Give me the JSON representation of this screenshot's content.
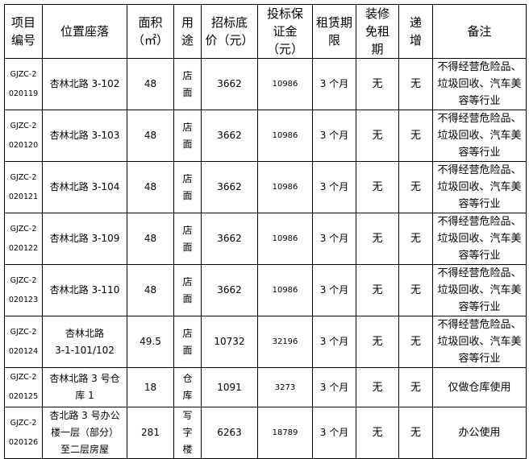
{
  "headers": [
    "项目\n编号",
    "位置座落",
    "面积\n（㎡）",
    "用\n途",
    "招标底\n价（元）",
    "投标保\n证金\n（元）",
    "租赁期\n限",
    "装修\n免租\n期",
    "递\n增",
    "备注"
  ],
  "rows": [
    {
      "code": "GJZC-2\n020119",
      "location": "杏林北路 3-102",
      "area": "48",
      "use": "店\n面",
      "base_price": "3662",
      "deposit": "10986",
      "term": "3 个月",
      "free_period": "无",
      "increase": "无",
      "note": "不得经营危险品、\n垃圾回收、汽车美\n容等行业"
    },
    {
      "code": "GJZC-2\n020120",
      "location": "杏林北路 3-103",
      "area": "48",
      "use": "店\n面",
      "base_price": "3662",
      "deposit": "10986",
      "term": "3 个月",
      "free_period": "无",
      "increase": "无",
      "note": "不得经营危险品、\n垃圾回收、汽车美\n容等行业"
    },
    {
      "code": "GJZC-2\n020121",
      "location": "杏林北路 3-104",
      "area": "48",
      "use": "店\n面",
      "base_price": "3662",
      "deposit": "10986",
      "term": "3 个月",
      "free_period": "无",
      "increase": "无",
      "note": "不得经营危险品、\n垃圾回收、汽车美\n容等行业"
    },
    {
      "code": "GJZC-2\n020122",
      "location": "杏林北路 3-109",
      "area": "48",
      "use": "店\n面",
      "base_price": "3662",
      "deposit": "10986",
      "term": "3 个月",
      "free_period": "无",
      "increase": "无",
      "note": "不得经营危险品、\n垃圾回收、汽车美\n容等行业"
    },
    {
      "code": "GJZC-2\n020123",
      "location": "杏林北路 3-110",
      "area": "48",
      "use": "店\n面",
      "base_price": "3662",
      "deposit": "10986",
      "term": "3 个月",
      "free_period": "无",
      "increase": "无",
      "note": "不得经营危险品、\n垃圾回收、汽车美\n容等行业"
    },
    {
      "code": "GJZC-2\n020124",
      "location": "杏林北路\n3-1-101/102",
      "area": "49.5",
      "use": "店\n面",
      "base_price": "10732",
      "deposit": "32196",
      "term": "3 个月",
      "free_period": "无",
      "increase": "无",
      "note": "不得经营危险品、\n垃圾回收、汽车美\n容等行业"
    },
    {
      "code": "GJZC-2\n020125",
      "location": "杏林北路 3 号仓\n库 1",
      "area": "18",
      "use": "仓\n库",
      "base_price": "1091",
      "deposit": "3273",
      "term": "3 个月",
      "free_period": "无",
      "increase": "无",
      "note": "仅做仓库使用"
    },
    {
      "code": "GJZC-2\n020126",
      "location": "杏北路 3 号办公\n楼一层（部分）\n至二层房屋",
      "area": "281",
      "use": "写\n字\n楼",
      "base_price": "6263",
      "deposit": "18789",
      "term": "3 个月",
      "free_period": "无",
      "increase": "无",
      "note": "办公使用"
    }
  ]
}
